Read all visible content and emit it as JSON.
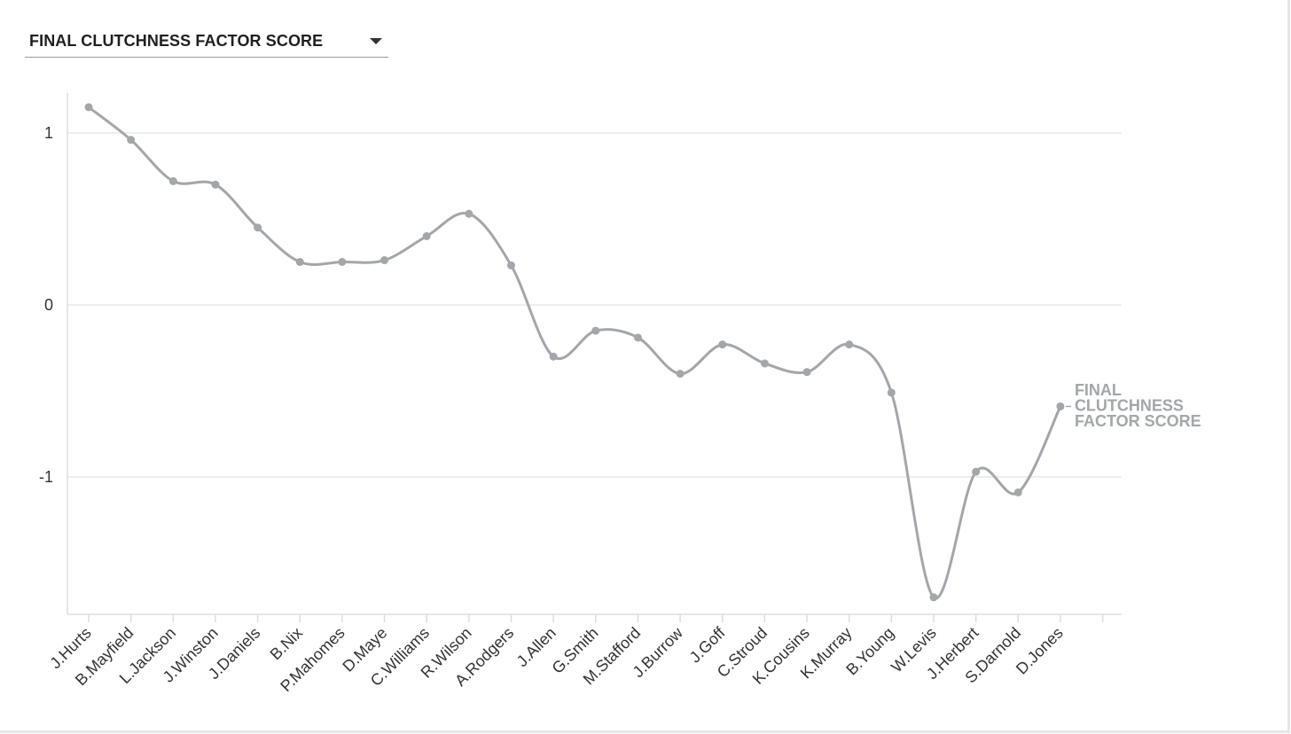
{
  "metric_selector": {
    "selected": "FINAL CLUTCHNESS FACTOR SCORE",
    "caret_icon": "caret-down-icon"
  },
  "chart_data": {
    "type": "line",
    "smooth": true,
    "markers": true,
    "grid": "horizontal",
    "legend": "none",
    "line_color": "#a3a6aa",
    "categories": [
      "J.Hurts",
      "B.Mayfield",
      "L.Jackson",
      "J.Winston",
      "J.Daniels",
      "B.Nix",
      "P.Mahomes",
      "D.Maye",
      "C.Williams",
      "R.Wilson",
      "A.Rodgers",
      "J.Allen",
      "G.Smith",
      "M.Stafford",
      "J.Burrow",
      "J.Goff",
      "C.Stroud",
      "K.Cousins",
      "K.Murray",
      "B.Young",
      "W.Levis",
      "J.Herbert",
      "S.Darnold",
      "D.Jones"
    ],
    "series": [
      {
        "name": "FINAL CLUTCHNESS FACTOR SCORE",
        "values": [
          1.15,
          0.96,
          0.72,
          0.7,
          0.45,
          0.25,
          0.25,
          0.26,
          0.4,
          0.53,
          0.23,
          -0.3,
          -0.15,
          -0.19,
          -0.4,
          -0.23,
          -0.34,
          -0.39,
          -0.23,
          -0.51,
          -1.7,
          -0.97,
          -1.09,
          -0.59
        ]
      }
    ],
    "series_label_lines": [
      "FINAL",
      "CLUTCHNESS",
      "FACTOR SCORE"
    ],
    "yticks": [
      1,
      0,
      -1
    ],
    "ytick_labels": [
      "1",
      "0",
      "-1"
    ],
    "ylim": [
      -1.8,
      1.22
    ],
    "title": "",
    "xlabel": "",
    "ylabel": ""
  }
}
